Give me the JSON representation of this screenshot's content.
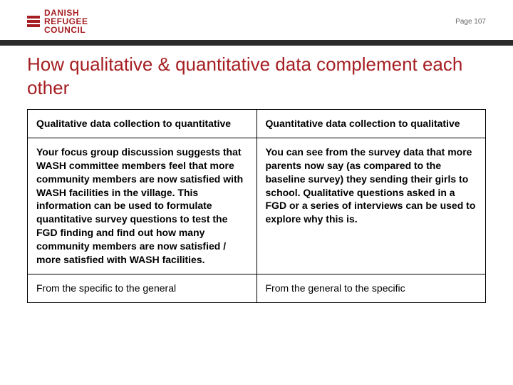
{
  "logo": {
    "line1": "DANISH",
    "line2": "REFUGEE",
    "line3": "COUNCIL",
    "brand_color": "#a51e22"
  },
  "page_label": "Page 107",
  "title": "How qualitative & quantitative data complement each other",
  "table": {
    "columns": [
      "Qualitative data collection to quantitative",
      "Quantitative data collection to qualitative"
    ],
    "rows": [
      [
        "Your focus group discussion suggests that WASH committee members feel that more community members are now satisfied with WASH facilities in the village. This information can be used to formulate quantitative survey questions to test the FGD finding and find out how many community members are now satisfied / more satisfied with WASH facilities.",
        "You can see from the survey data that more parents now say (as compared to the baseline survey) they sending their girls to school. Qualitative questions asked in a FGD or a series of interviews can be used to explore why this is."
      ],
      [
        "From the specific to the general",
        "From the general to the specific"
      ]
    ],
    "border_color": "#000000",
    "font_size": 14
  },
  "colors": {
    "title": "#a51e22",
    "strip": "#2b2b2b",
    "background": "#ffffff"
  }
}
